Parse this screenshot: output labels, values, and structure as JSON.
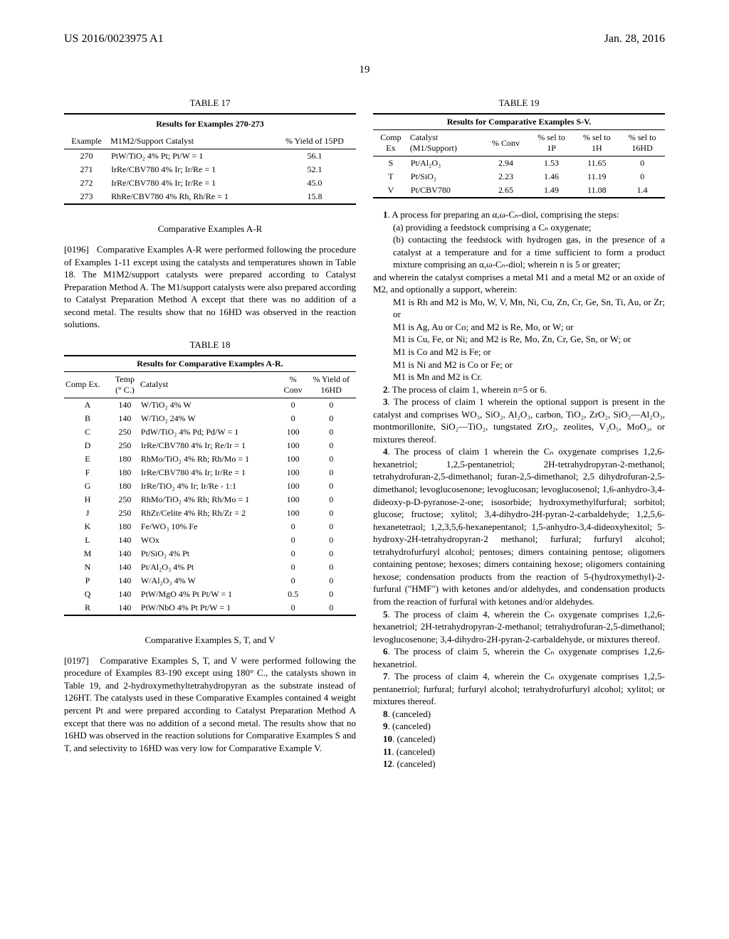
{
  "header": {
    "left": "US 2016/0023975 A1",
    "right": "Jan. 28, 2016"
  },
  "page_number": "19",
  "table17": {
    "caption": "TABLE 17",
    "subcaption": "Results for Examples 270-273",
    "columns": [
      "Example",
      "M1M2/Support Catalyst",
      "% Yield of 15PD"
    ],
    "rows": [
      [
        "270",
        "PtW/TiO₂ 4% Pt; Pt/W = 1",
        "56.1"
      ],
      [
        "271",
        "IrRe/CBV780 4% Ir; Ir/Re = 1",
        "52.1"
      ],
      [
        "272",
        "IrRe/CBV780 4% Ir; Ir/Re = 1",
        "45.0"
      ],
      [
        "273",
        "RhRe/CBV780 4% Rh, Rh/Re = 1",
        "15.8"
      ]
    ]
  },
  "sectionAR": {
    "heading": "Comparative Examples A-R",
    "para_num": "[0196]",
    "para": "Comparative Examples A-R were performed following the procedure of Examples 1-11 except using the catalysts and temperatures shown in Table 18. The M1M2/support catalysts were prepared according to Catalyst Preparation Method A. The M1/support catalysts were also prepared according to Catalyst Preparation Method A except that there was no addition of a second metal. The results show that no 16HD was observed in the reaction solutions."
  },
  "table18": {
    "caption": "TABLE 18",
    "subcaption": "Results for Comparative Examples A-R.",
    "columns": [
      "Comp Ex.",
      "Temp (° C.)",
      "Catalyst",
      "% Conv",
      "% Yield of 16HD"
    ],
    "rows": [
      [
        "A",
        "140",
        "W/TiO₂ 4% W",
        "0",
        "0"
      ],
      [
        "B",
        "140",
        "W/TiO₂ 24% W",
        "0",
        "0"
      ],
      [
        "C",
        "250",
        "PdW/TiO₂ 4% Pd; Pd/W = 1",
        "100",
        "0"
      ],
      [
        "D",
        "250",
        "IrRe/CBV780 4% Ir; Re/Ir = 1",
        "100",
        "0"
      ],
      [
        "E",
        "180",
        "RhMo/TiO₂ 4% Rh; Rh/Mo = 1",
        "100",
        "0"
      ],
      [
        "F",
        "180",
        "IrRe/CBV780 4% Ir; Ir/Re = 1",
        "100",
        "0"
      ],
      [
        "G",
        "180",
        "IrRe/TiO₂ 4% Ir; Ir/Re - 1:1",
        "100",
        "0"
      ],
      [
        "H",
        "250",
        "RhMo/TiO₂ 4% Rh; Rh/Mo = 1",
        "100",
        "0"
      ],
      [
        "J",
        "250",
        "RhZr/Celite 4% Rh; Rh/Zr = 2",
        "100",
        "0"
      ],
      [
        "K",
        "180",
        "Fe/WO₃ 10% Fe",
        "0",
        "0"
      ],
      [
        "L",
        "140",
        "WOx",
        "0",
        "0"
      ],
      [
        "M",
        "140",
        "Pt/SiO₂ 4% Pt",
        "0",
        "0"
      ],
      [
        "N",
        "140",
        "Pt/Al₂O₃ 4% Pt",
        "0",
        "0"
      ],
      [
        "P",
        "140",
        "W/Al₂O₃ 4% W",
        "0",
        "0"
      ],
      [
        "Q",
        "140",
        "PtW/MgO 4% Pt Pt/W = 1",
        "0.5",
        "0"
      ],
      [
        "R",
        "140",
        "PtW/NbO 4% Pt Pt/W = 1",
        "0",
        "0"
      ]
    ]
  },
  "sectionSTV": {
    "heading": "Comparative Examples S, T, and V",
    "para_num": "[0197]",
    "para": "Comparative Examples S, T, and V were performed following the procedure of Examples 83-190 except using 180° C., the catalysts shown in Table 19, and 2-hydroxymethyltetrahydropyran as the substrate instead of 126HT. The catalysts used in these Comparative Examples contained 4 weight percent Pt and were prepared according to Catalyst Preparation Method A except that there was no addition of a second metal. The results show that no 16HD was observed in the reaction solutions for Comparative Examples S and T, and selectivity to 16HD was very low for Comparative Example V."
  },
  "table19": {
    "caption": "TABLE 19",
    "subcaption": "Results for Comparative Examples S-V.",
    "columns": [
      "Comp Ex",
      "Catalyst (M1/Support)",
      "% Conv",
      "% sel to 1P",
      "% sel to 1H",
      "% sel to 16HD"
    ],
    "rows": [
      [
        "S",
        "Pt/Al₂O₃",
        "2.94",
        "1.53",
        "11.65",
        "0"
      ],
      [
        "T",
        "Pt/SiO₂",
        "2.23",
        "1.46",
        "11.19",
        "0"
      ],
      [
        "V",
        "Pt/CBV780",
        "2.65",
        "1.49",
        "11.08",
        "1.4"
      ]
    ]
  },
  "claims": {
    "c1_lead": "1. A process for preparing an α,ω-Cₙ-diol, comprising the steps:",
    "c1_a": "(a) providing a feedstock comprising a Cₙ oxygenate;",
    "c1_b": "(b) contacting the feedstock with hydrogen gas, in the presence of a catalyst at a temperature and for a time sufficient to form a product mixture comprising an α,ω-Cₙ-diol; wherein n is 5 or greater;",
    "c1_mid": "and wherein the catalyst comprises a metal M1 and a metal M2 or an oxide of M2, and optionally a support, wherein:",
    "c1_m1": "M1 is Rh and M2 is Mo, W, V, Mn, Ni, Cu, Zn, Cr, Ge, Sn, Ti, Au, or Zr; or",
    "c1_m2": "M1 is Ag, Au or Co; and M2 is Re, Mo, or W; or",
    "c1_m3": "M1 is Cu, Fe, or Ni; and M2 is Re, Mo, Zn, Cr, Ge, Sn, or W; or",
    "c1_m4": "M1 is Co and M2 is Fe; or",
    "c1_m5": "M1 is Ni and M2 is Co or Fe; or",
    "c1_m6": "M1 is Mn and M2 is Cr.",
    "c2": "2. The process of claim 1, wherein n=5 or 6.",
    "c3": "3. The process of claim 1 wherein the optional support is present in the catalyst and comprises WO₃, SiO₂, Al₂O₃, carbon, TiO₂, ZrO₂, SiO₂—Al₂O₃, montmorillonite, SiO₂—TiO₂, tungstated ZrO₂, zeolites, V₂O₅, MoO₃, or mixtures thereof.",
    "c4": "4. The process of claim 1 wherein the Cₙ oxygenate comprises 1,2,6-hexanetriol; 1,2,5-pentanetriol; 2H-tetrahydropyran-2-methanol; tetrahydrofuran-2,5-dimethanol; furan-2,5-dimethanol; 2,5 dihydrofuran-2,5-dimethanol; levoglucosenone; levoglucosan; levoglucosenol; 1,6-anhydro-3,4-dideoxy-p-D-pyranose-2-one; isosorbide; hydroxymethylfurfural; sorbitol; glucose; fructose; xylitol; 3,4-dihydro-2H-pyran-2-carbaldehyde; 1,2,5,6-hexanetetraol; 1,2,3,5,6-hexanepentanol; 1,5-anhydro-3,4-dideoxyhexitol; 5-hydroxy-2H-tetrahydropyran-2 methanol; furfural; furfuryl alcohol; tetrahydrofurfuryl alcohol; pentoses; dimers containing pentose; oligomers containing pentose; hexoses; dimers containing hexose; oligomers containing hexose; condensation products from the reaction of 5-(hydroxymethyl)-2-furfural (\"HMF\") with ketones and/or aldehydes, and condensation products from the reaction of furfural with ketones and/or aldehydes.",
    "c5": "5. The process of claim 4, wherein the Cₙ oxygenate comprises 1,2,6-hexanetriol; 2H-tetrahydropyran-2-methanol; tetrahydrofuran-2,5-dimethanol; levoglucosenone; 3,4-dihydro-2H-pyran-2-carbaldehyde, or mixtures thereof.",
    "c6": "6. The process of claim 5, wherein the Cₙ oxygenate comprises 1,2,6-hexanetriol.",
    "c7": "7. The process of claim 4, wherein the Cₙ oxygenate comprises 1,2,5-pentanetriol; furfural; furfuryl alcohol; tetrahydrofurfuryl alcohol; xylitol; or mixtures thereof.",
    "c8": "8. (canceled)",
    "c9": "9. (canceled)",
    "c10": "10. (canceled)",
    "c11": "11. (canceled)",
    "c12": "12. (canceled)"
  }
}
